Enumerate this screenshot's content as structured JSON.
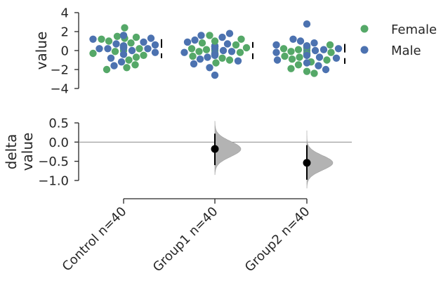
{
  "chart_data": [
    {
      "type": "scatter",
      "subtype": "swarm",
      "ylabel": "value",
      "ylim": [
        -4,
        4
      ],
      "yticks": [
        "4",
        "2",
        "0",
        "−2",
        "−4"
      ],
      "ytick_values": [
        4,
        2,
        0,
        -2,
        -4
      ],
      "colors": {
        "Female": "#55a868",
        "Male": "#4c72b0"
      },
      "legend": {
        "placement": "top-right",
        "entries": [
          "Female",
          "Male"
        ]
      },
      "groups": [
        {
          "name": "Control",
          "summary": {
            "mean": 0.0,
            "sd_low": -0.8,
            "sd_high": 1.2
          },
          "series": [
            {
              "name": "Female",
              "values": [
                2.4,
                1.6,
                1.5,
                1.4,
                1.3,
                1.2,
                1.0,
                0.8,
                0.5,
                0.3,
                0.3,
                0.2,
                0.0,
                -0.1,
                -0.3,
                -0.5,
                -0.7,
                -1.0,
                -1.5,
                -1.8,
                -2.0
              ]
            },
            {
              "name": "Male",
              "values": [
                1.6,
                1.3,
                1.2,
                0.9,
                0.7,
                0.6,
                0.5,
                0.4,
                0.3,
                0.3,
                0.2,
                0.2,
                0.2,
                0.0,
                -0.2,
                -0.4,
                -0.8,
                -1.2,
                -1.6
              ]
            }
          ]
        },
        {
          "name": "Group1",
          "summary": {
            "mean": 0.0,
            "sd_low": -0.9,
            "sd_high": 0.9
          },
          "series": [
            {
              "name": "Female",
              "values": [
                1.6,
                1.2,
                1.0,
                0.8,
                0.6,
                0.4,
                0.3,
                0.2,
                0.1,
                0.0,
                -0.1,
                -0.2,
                -0.3,
                -0.4,
                -0.5,
                -0.6,
                -0.8,
                -1.0,
                -1.3
              ]
            },
            {
              "name": "Male",
              "values": [
                1.8,
                1.6,
                1.4,
                1.1,
                0.9,
                0.7,
                0.5,
                0.4,
                0.2,
                0.0,
                -0.1,
                -0.2,
                -0.3,
                -0.4,
                -0.5,
                -0.7,
                -0.9,
                -1.1,
                -1.4,
                -1.8,
                -2.6
              ]
            }
          ]
        },
        {
          "name": "Group2",
          "summary": {
            "mean": -0.5,
            "sd_low": -1.4,
            "sd_high": 0.7
          },
          "series": [
            {
              "name": "Female",
              "values": [
                0.6,
                0.5,
                0.4,
                0.3,
                0.2,
                0.1,
                0.0,
                -0.1,
                -0.2,
                -0.3,
                -0.4,
                -0.5,
                -0.6,
                -0.7,
                -0.9,
                -1.0,
                -1.2,
                -1.5,
                -1.9,
                -2.2,
                -2.4
              ]
            },
            {
              "name": "Male",
              "values": [
                2.8,
                1.2,
                1.0,
                0.8,
                0.6,
                0.5,
                0.3,
                0.2,
                0.1,
                0.0,
                -0.2,
                -0.3,
                -0.5,
                -0.7,
                -0.8,
                -1.0,
                -1.3,
                -1.6,
                -2.0
              ]
            }
          ]
        }
      ]
    },
    {
      "type": "scatter",
      "subtype": "estimation",
      "ylabel": "delta value",
      "ylabel_lines": [
        "delta",
        "value"
      ],
      "ylim": [
        -1.0,
        0.5
      ],
      "yticks": [
        "0.5",
        "0.0",
        "−0.5",
        "−1.0"
      ],
      "ytick_values": [
        0.5,
        0.0,
        -0.5,
        -1.0
      ],
      "categories": [
        "Control n=40",
        "Group1 n=40",
        "Group2 n=40"
      ],
      "reference_line": 0,
      "colors": {
        "point": "#000000",
        "distribution": "#b3b3b3"
      },
      "estimates": [
        {
          "category": "Group1 n=40",
          "mean": -0.18,
          "ci_low": -0.6,
          "ci_high": 0.22,
          "dist_low": -0.85,
          "dist_high": 0.55,
          "dist_sd": 0.2
        },
        {
          "category": "Group2 n=40",
          "mean": -0.54,
          "ci_low": -0.98,
          "ci_high": -0.08,
          "dist_low": -1.2,
          "dist_high": 0.3,
          "dist_sd": 0.19
        }
      ]
    }
  ]
}
